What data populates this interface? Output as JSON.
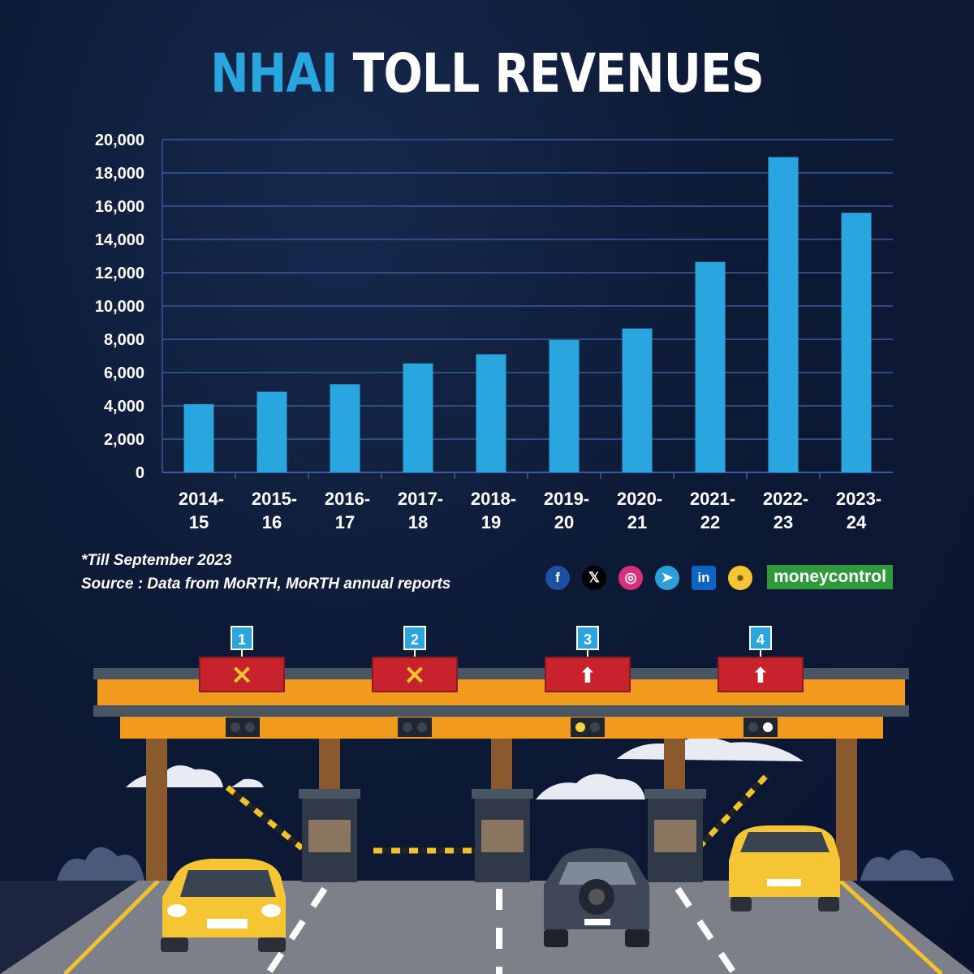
{
  "title": {
    "accent": "NHAI",
    "rest": "TOLL REVENUES"
  },
  "chart_data": {
    "type": "bar",
    "categories": [
      "2014-15",
      "2015-16",
      "2016-17",
      "2017-18",
      "2018-19",
      "2019-20",
      "2020-21",
      "2021-22",
      "2022-23",
      "2023-24"
    ],
    "category_lines": [
      [
        "2014-",
        "15"
      ],
      [
        "2015-",
        "16"
      ],
      [
        "2016-",
        "17"
      ],
      [
        "2017-",
        "18"
      ],
      [
        "2018-",
        "19"
      ],
      [
        "2019-",
        "20"
      ],
      [
        "2020-",
        "21"
      ],
      [
        "2021-",
        "22"
      ],
      [
        "2022-",
        "23"
      ],
      [
        "2023-",
        "24"
      ]
    ],
    "values": [
      4100,
      4850,
      5300,
      6550,
      7100,
      7950,
      8650,
      12650,
      18950,
      15600
    ],
    "yticks": [
      "0",
      "2,000",
      "4,000",
      "6,000",
      "8,000",
      "10,000",
      "12,000",
      "14,000",
      "16,000",
      "18,000",
      "20,000"
    ],
    "ylim": [
      0,
      20000
    ],
    "grid": true,
    "bar_color": "#29a6e0"
  },
  "notes": {
    "footnote": "*Till September 2023",
    "source": "Source : Data from MoRTH, MoRTH annual reports"
  },
  "social": {
    "facebook": "f",
    "x": "𝕏",
    "instagram": "◎",
    "telegram": "➤",
    "linkedin": "in",
    "koo": "●"
  },
  "brand": {
    "money": "money",
    "control": "control"
  },
  "lanes": [
    {
      "number": "1",
      "sign": "×",
      "icon": "close-icon"
    },
    {
      "number": "2",
      "sign": "×",
      "icon": "close-icon"
    },
    {
      "number": "3",
      "sign": "⬆",
      "icon": "arrow-up-icon"
    },
    {
      "number": "4",
      "sign": "⬆",
      "icon": "arrow-up-icon"
    }
  ]
}
